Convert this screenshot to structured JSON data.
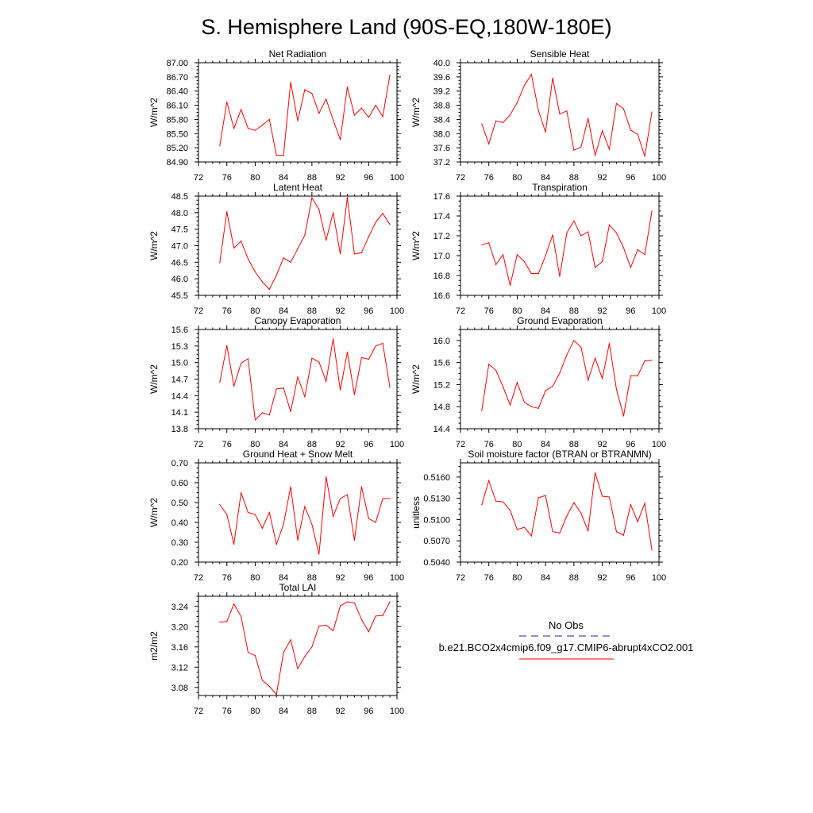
{
  "title": "S. Hemisphere Land (90S-EQ,180W-180E)",
  "chart_data": [
    {
      "type": "line",
      "title": "Net Radiation",
      "ylabel": "W/m^2",
      "xlim": [
        72,
        100
      ],
      "ylim": [
        84.9,
        87.0
      ],
      "xticks": [
        "72",
        "76",
        "80",
        "84",
        "88",
        "92",
        "96",
        "100"
      ],
      "yticks": [
        "87.00",
        "86.70",
        "86.40",
        "86.10",
        "85.80",
        "85.50",
        "85.20",
        "84.90"
      ],
      "x": [
        75,
        76,
        77,
        78,
        79,
        80,
        81,
        82,
        83,
        84,
        85,
        86,
        87,
        88,
        89,
        90,
        91,
        92,
        93,
        94,
        95,
        96,
        97,
        98,
        99
      ],
      "series": [
        {
          "name": "b.e21.BCO2x4cmip6.f09_g17.CMIP6-abrupt4xCO2.001",
          "color": "#ff0000",
          "values": [
            85.24,
            86.17,
            85.61,
            86.01,
            85.61,
            85.57,
            85.68,
            85.8,
            85.04,
            85.04,
            86.59,
            85.77,
            86.43,
            86.35,
            85.93,
            86.23,
            85.79,
            85.37,
            86.49,
            85.89,
            86.04,
            85.84,
            86.1,
            85.86,
            86.74
          ]
        }
      ]
    },
    {
      "type": "line",
      "title": "Sensible Heat",
      "ylabel": "W/m^2",
      "xlim": [
        72,
        100
      ],
      "ylim": [
        37.2,
        40.0
      ],
      "xticks": [
        "72",
        "76",
        "80",
        "84",
        "88",
        "92",
        "96",
        "100"
      ],
      "yticks": [
        "40.0",
        "39.6",
        "39.2",
        "38.8",
        "38.4",
        "38.0",
        "37.6",
        "37.2"
      ],
      "x": [
        75,
        76,
        77,
        78,
        79,
        80,
        81,
        82,
        83,
        84,
        85,
        86,
        87,
        88,
        89,
        90,
        91,
        92,
        93,
        94,
        95,
        96,
        97,
        98,
        99
      ],
      "series": [
        {
          "name": "b.e21.BCO2x4cmip6.f09_g17.CMIP6-abrupt4xCO2.001",
          "color": "#ff0000",
          "values": [
            38.27,
            37.71,
            38.36,
            38.31,
            38.53,
            38.87,
            39.36,
            39.67,
            38.65,
            38.04,
            39.57,
            38.55,
            38.64,
            37.53,
            37.62,
            38.43,
            37.38,
            38.08,
            37.56,
            38.85,
            38.7,
            38.1,
            37.98,
            37.36,
            38.61
          ]
        }
      ]
    },
    {
      "type": "line",
      "title": "Latent Heat",
      "ylabel": "W/m^2",
      "xlim": [
        72,
        100
      ],
      "ylim": [
        45.5,
        48.5
      ],
      "xticks": [
        "72",
        "76",
        "80",
        "84",
        "88",
        "92",
        "96",
        "100"
      ],
      "yticks": [
        "48.5",
        "48.0",
        "47.5",
        "47.0",
        "46.5",
        "46.0",
        "45.5"
      ],
      "x": [
        75,
        76,
        77,
        78,
        79,
        80,
        81,
        82,
        83,
        84,
        85,
        86,
        87,
        88,
        89,
        90,
        91,
        92,
        93,
        94,
        95,
        96,
        97,
        98,
        99
      ],
      "series": [
        {
          "name": "b.e21.BCO2x4cmip6.f09_g17.CMIP6-abrupt4xCO2.001",
          "color": "#ff0000",
          "values": [
            46.48,
            48.03,
            46.93,
            47.14,
            46.6,
            46.21,
            45.91,
            45.68,
            46.11,
            46.63,
            46.5,
            46.91,
            47.32,
            48.45,
            48.09,
            47.16,
            48.0,
            46.75,
            48.46,
            46.75,
            46.79,
            47.27,
            47.71,
            47.98,
            47.64
          ]
        }
      ]
    },
    {
      "type": "line",
      "title": "Transpiration",
      "ylabel": "W/m^2",
      "xlim": [
        72,
        100
      ],
      "ylim": [
        16.6,
        17.6
      ],
      "xticks": [
        "72",
        "76",
        "80",
        "84",
        "88",
        "92",
        "96",
        "100"
      ],
      "yticks": [
        "17.6",
        "17.4",
        "17.2",
        "17.0",
        "16.8",
        "16.6"
      ],
      "x": [
        75,
        76,
        77,
        78,
        79,
        80,
        81,
        82,
        83,
        84,
        85,
        86,
        87,
        88,
        89,
        90,
        91,
        92,
        93,
        94,
        95,
        96,
        97,
        98,
        99
      ],
      "series": [
        {
          "name": "b.e21.BCO2x4cmip6.f09_g17.CMIP6-abrupt4xCO2.001",
          "color": "#ff0000",
          "values": [
            17.11,
            17.13,
            16.91,
            17.01,
            16.7,
            17.01,
            16.94,
            16.82,
            16.82,
            17.0,
            17.21,
            16.79,
            17.23,
            17.35,
            17.2,
            17.24,
            16.88,
            16.94,
            17.31,
            17.23,
            17.08,
            16.88,
            17.06,
            17.01,
            17.45
          ]
        }
      ]
    },
    {
      "type": "line",
      "title": "Canopy Evaporation",
      "ylabel": "W/m^2",
      "xlim": [
        72,
        100
      ],
      "ylim": [
        13.8,
        15.6
      ],
      "xticks": [
        "72",
        "76",
        "80",
        "84",
        "88",
        "92",
        "96",
        "100"
      ],
      "yticks": [
        "15.6",
        "15.3",
        "15.0",
        "14.7",
        "14.4",
        "14.1",
        "13.8"
      ],
      "x": [
        75,
        76,
        77,
        78,
        79,
        80,
        81,
        82,
        83,
        84,
        85,
        86,
        87,
        88,
        89,
        90,
        91,
        92,
        93,
        94,
        95,
        96,
        97,
        98,
        99
      ],
      "series": [
        {
          "name": "b.e21.BCO2x4cmip6.f09_g17.CMIP6-abrupt4xCO2.001",
          "color": "#ff0000",
          "values": [
            14.64,
            15.31,
            14.57,
            14.99,
            15.07,
            13.96,
            14.09,
            14.05,
            14.52,
            14.54,
            14.11,
            14.74,
            14.38,
            15.08,
            15.01,
            14.66,
            15.43,
            14.5,
            15.19,
            14.42,
            15.09,
            15.06,
            15.3,
            15.35,
            14.55
          ]
        }
      ]
    },
    {
      "type": "line",
      "title": "Ground Evaporation",
      "ylabel": "W/m^2",
      "xlim": [
        72,
        100
      ],
      "ylim": [
        14.4,
        16.2
      ],
      "xticks": [
        "72",
        "76",
        "80",
        "84",
        "88",
        "92",
        "96",
        "100"
      ],
      "yticks": [
        "16.0",
        "15.6",
        "15.2",
        "14.8",
        "14.4"
      ],
      "x": [
        75,
        76,
        77,
        78,
        79,
        80,
        81,
        82,
        83,
        84,
        85,
        86,
        87,
        88,
        89,
        90,
        91,
        92,
        93,
        94,
        95,
        96,
        97,
        98,
        99
      ],
      "series": [
        {
          "name": "b.e21.BCO2x4cmip6.f09_g17.CMIP6-abrupt4xCO2.001",
          "color": "#ff0000",
          "values": [
            14.73,
            15.57,
            15.46,
            15.16,
            14.83,
            15.24,
            14.88,
            14.8,
            14.77,
            15.09,
            15.17,
            15.41,
            15.74,
            16.0,
            15.88,
            15.28,
            15.68,
            15.31,
            15.95,
            15.12,
            14.63,
            15.36,
            15.36,
            15.63,
            15.64
          ]
        }
      ]
    },
    {
      "type": "line",
      "title": "Ground Heat + Snow Melt",
      "ylabel": "W/m^2",
      "xlim": [
        72,
        100
      ],
      "ylim": [
        0.2,
        0.7
      ],
      "xticks": [
        "72",
        "76",
        "80",
        "84",
        "88",
        "92",
        "96",
        "100"
      ],
      "yticks": [
        "0.70",
        "0.60",
        "0.50",
        "0.40",
        "0.30",
        "0.20"
      ],
      "x": [
        75,
        76,
        77,
        78,
        79,
        80,
        81,
        82,
        83,
        84,
        85,
        86,
        87,
        88,
        89,
        90,
        91,
        92,
        93,
        94,
        95,
        96,
        97,
        98,
        99
      ],
      "series": [
        {
          "name": "b.e21.BCO2x4cmip6.f09_g17.CMIP6-abrupt4xCO2.001",
          "color": "#ff0000",
          "values": [
            0.49,
            0.44,
            0.29,
            0.55,
            0.45,
            0.44,
            0.37,
            0.45,
            0.29,
            0.39,
            0.58,
            0.31,
            0.48,
            0.39,
            0.24,
            0.63,
            0.43,
            0.52,
            0.54,
            0.31,
            0.58,
            0.42,
            0.4,
            0.52,
            0.52
          ]
        }
      ]
    },
    {
      "type": "line",
      "title": "Soil moisture factor (BTRAN or BTRANMN)",
      "ylabel": "unitless",
      "xlim": [
        72,
        100
      ],
      "ylim": [
        0.504,
        0.518
      ],
      "xticks": [
        "72",
        "76",
        "80",
        "84",
        "88",
        "92",
        "96",
        "100"
      ],
      "yticks": [
        "0.5160",
        "0.5130",
        "0.5100",
        "0.5070",
        "0.5040"
      ],
      "x": [
        75,
        76,
        77,
        78,
        79,
        80,
        81,
        82,
        83,
        84,
        85,
        86,
        87,
        88,
        89,
        90,
        91,
        92,
        93,
        94,
        95,
        96,
        97,
        98,
        99
      ],
      "series": [
        {
          "name": "b.e21.BCO2x4cmip6.f09_g17.CMIP6-abrupt4xCO2.001",
          "color": "#ff0000",
          "values": [
            0.5121,
            0.5155,
            0.5126,
            0.5125,
            0.5113,
            0.5086,
            0.5089,
            0.5077,
            0.5131,
            0.5134,
            0.5083,
            0.5081,
            0.5105,
            0.5124,
            0.5109,
            0.5084,
            0.5166,
            0.5133,
            0.5132,
            0.5083,
            0.5078,
            0.5121,
            0.5097,
            0.5123,
            0.5057
          ]
        }
      ]
    },
    {
      "type": "line",
      "title": "Total LAI",
      "ylabel": "m2/m2",
      "xlim": [
        72,
        100
      ],
      "ylim": [
        3.064,
        3.26
      ],
      "xticks": [
        "72",
        "76",
        "80",
        "84",
        "88",
        "92",
        "96",
        "100"
      ],
      "yticks": [
        "3.24",
        "3.20",
        "3.16",
        "3.12",
        "3.08"
      ],
      "x": [
        75,
        76,
        77,
        78,
        79,
        80,
        81,
        82,
        83,
        84,
        85,
        86,
        87,
        88,
        89,
        90,
        91,
        92,
        93,
        94,
        95,
        96,
        97,
        98,
        99
      ],
      "series": [
        {
          "name": "b.e21.BCO2x4cmip6.f09_g17.CMIP6-abrupt4xCO2.001",
          "color": "#ff0000",
          "values": [
            3.209,
            3.21,
            3.245,
            3.22,
            3.149,
            3.143,
            3.094,
            3.082,
            3.066,
            3.149,
            3.174,
            3.117,
            3.141,
            3.16,
            3.201,
            3.203,
            3.192,
            3.241,
            3.249,
            3.247,
            3.214,
            3.19,
            3.221,
            3.222,
            3.249
          ]
        }
      ]
    }
  ],
  "legend": {
    "obs_label": "No Obs",
    "obs_color": "#2222aa",
    "case_label": "b.e21.BCO2x4cmip6.f09_g17.CMIP6-abrupt4xCO2.001",
    "case_color": "#ff0000"
  }
}
